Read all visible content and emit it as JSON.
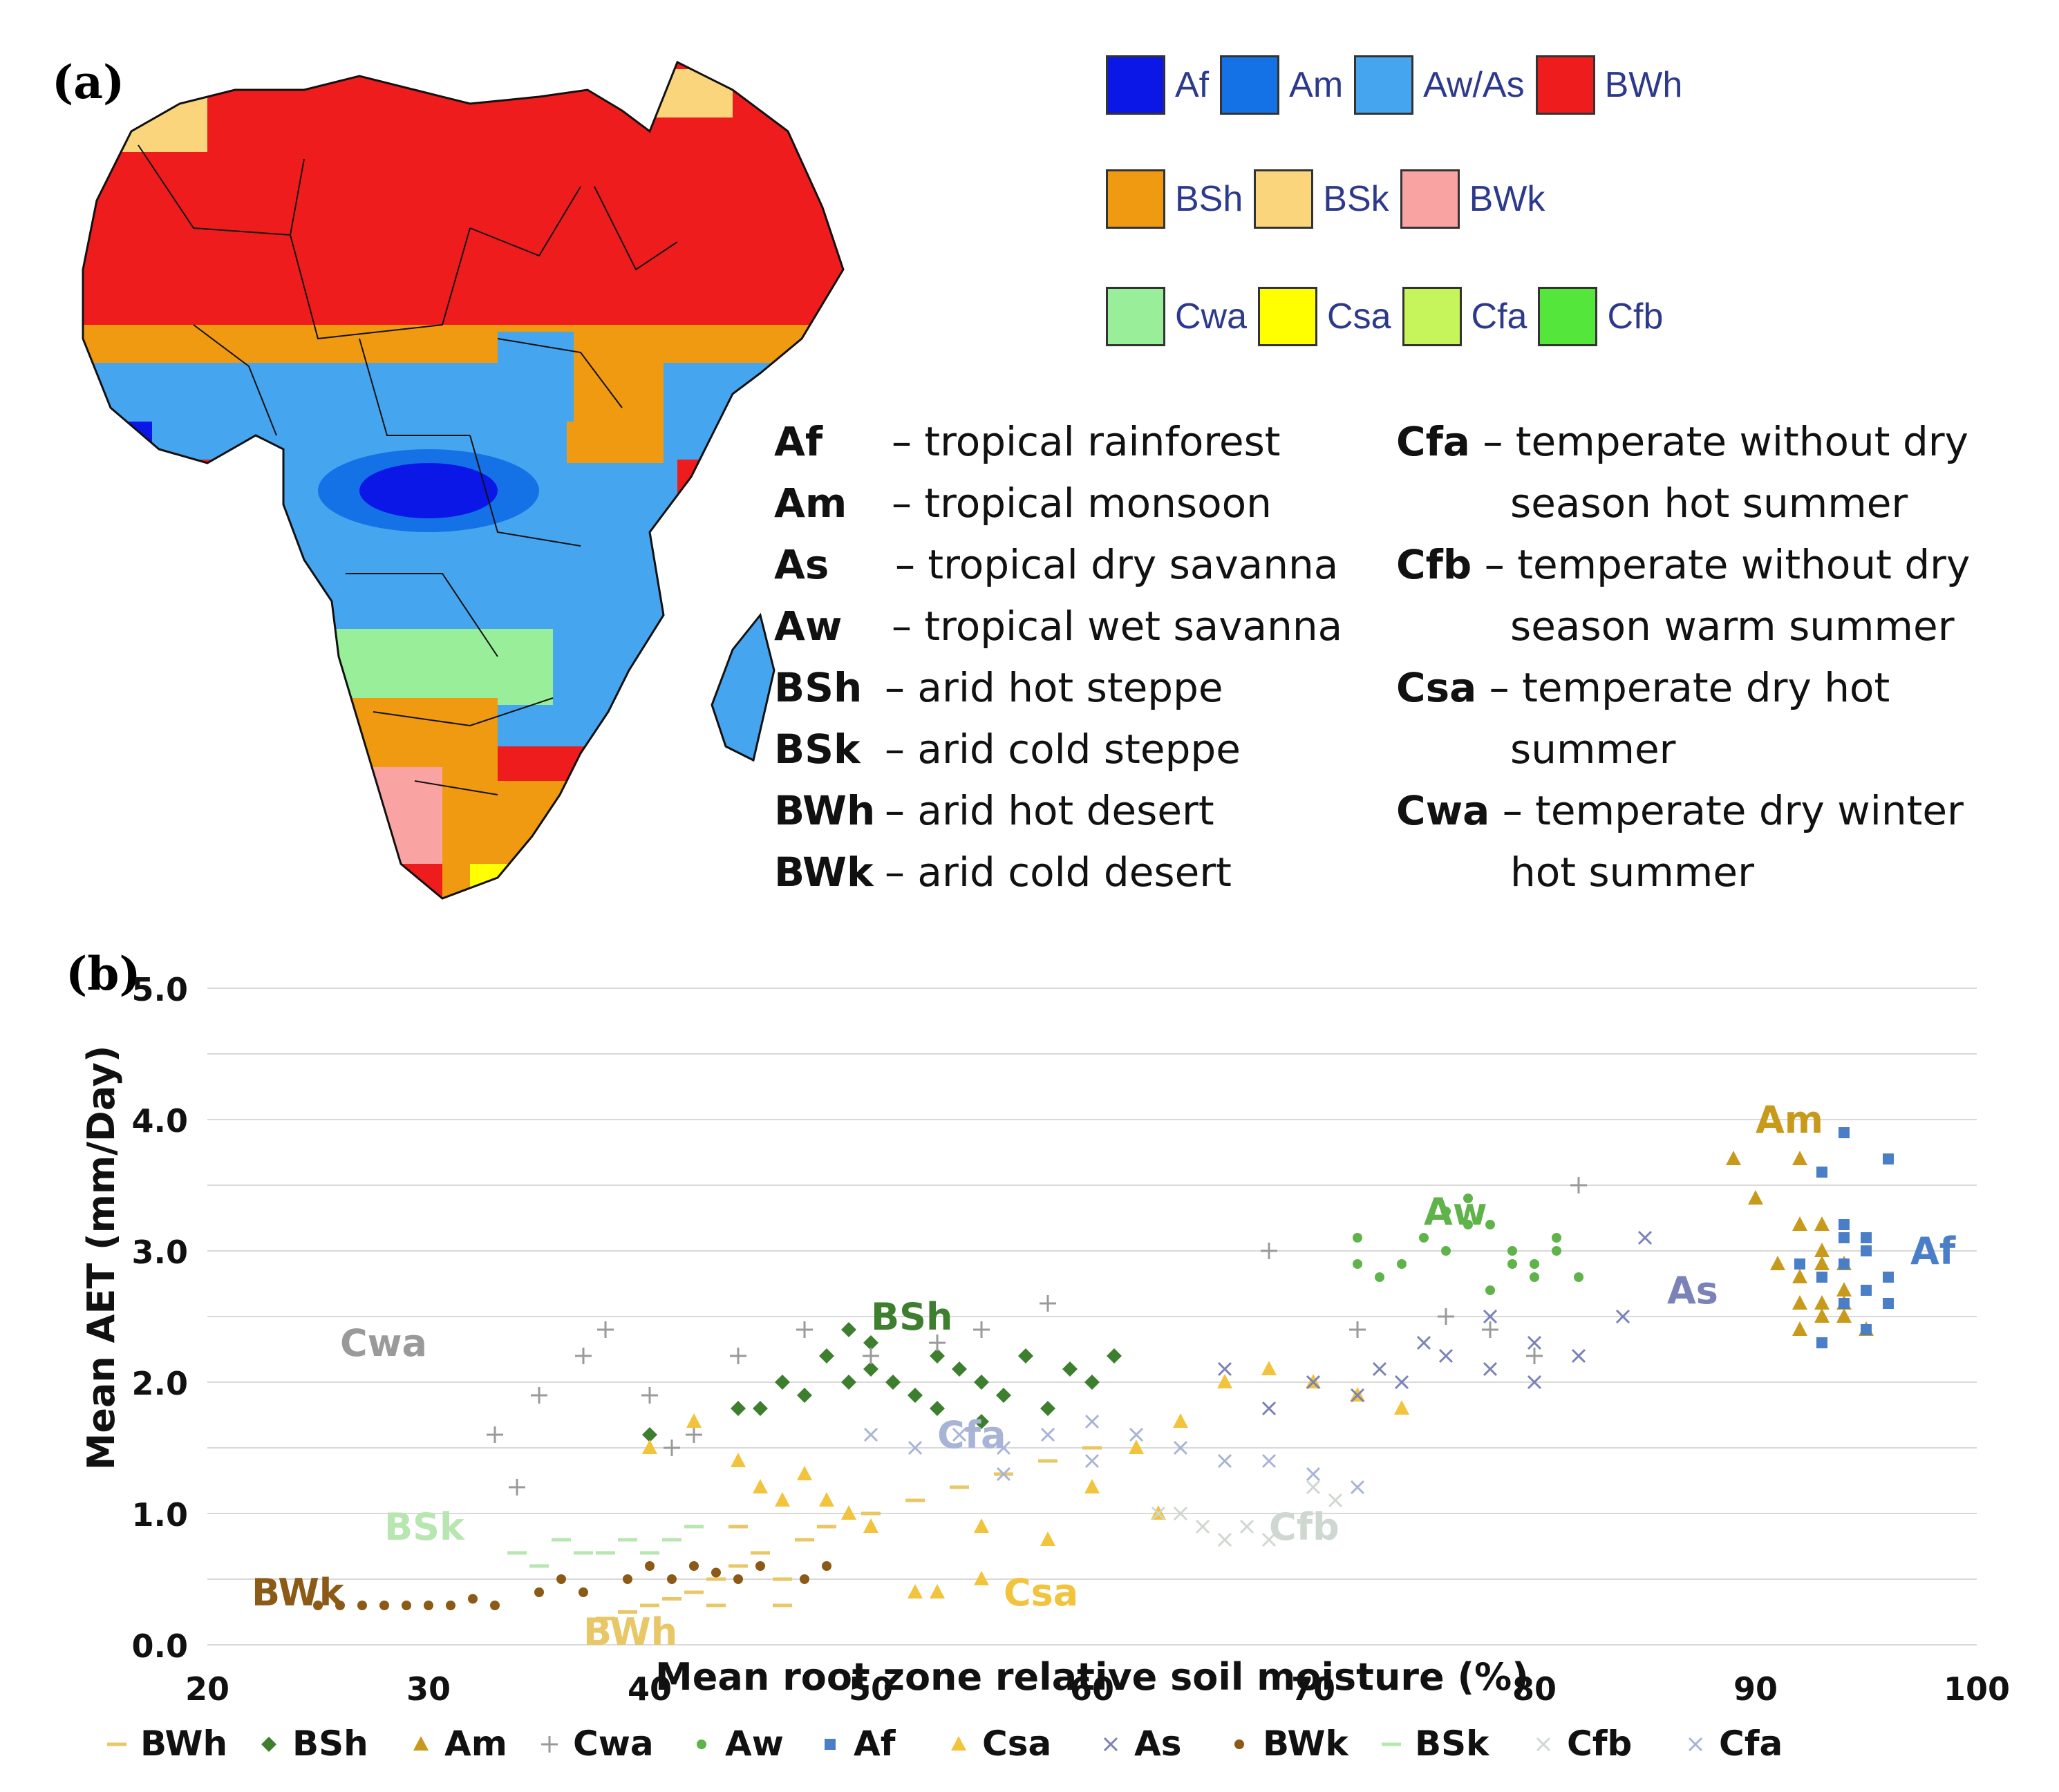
{
  "panel_a_label": "(a)",
  "panel_b_label": "(b)",
  "legend": {
    "rows": [
      [
        {
          "code": "Af",
          "color": "#0a17e6"
        },
        {
          "code": "Am",
          "color": "#1472e6"
        },
        {
          "code": "Aw/As",
          "color": "#46a5ef"
        },
        {
          "code": "BWh",
          "color": "#ee1c1c"
        }
      ],
      [
        {
          "code": "BSh",
          "color": "#ef9a10"
        },
        {
          "code": "BSk",
          "color": "#fad57c"
        },
        {
          "code": "BWk",
          "color": "#f9a3a3"
        }
      ],
      [
        {
          "code": "Cwa",
          "color": "#99ee99"
        },
        {
          "code": "Csa",
          "color": "#ffff00"
        },
        {
          "code": "Cfa",
          "color": "#c5f55a"
        },
        {
          "code": "Cfb",
          "color": "#55e63c"
        }
      ]
    ]
  },
  "definitions_left": [
    {
      "code": "Af",
      "text": "– tropical rainforest"
    },
    {
      "code": "Am",
      "text": "– tropical monsoon"
    },
    {
      "code": "As",
      "text": "– tropical dry savanna"
    },
    {
      "code": "Aw",
      "text": "– tropical wet savanna"
    },
    {
      "code": "BSh",
      "text": "– arid hot steppe"
    },
    {
      "code": "BSk",
      "text": "– arid cold steppe"
    },
    {
      "code": "BWh",
      "text": "– arid hot desert"
    },
    {
      "code": "BWk",
      "text": "– arid cold desert"
    }
  ],
  "definitions_right": [
    {
      "code": "Cfa",
      "text": "– temperate without dry",
      "cont": "season hot summer"
    },
    {
      "code": "Cfb",
      "text": "– temperate without dry",
      "cont": "season warm summer"
    },
    {
      "code": "Csa",
      "text": "– temperate dry hot",
      "cont": "summer"
    },
    {
      "code": "Cwa",
      "text": "– temperate dry winter",
      "cont": "hot summer"
    }
  ],
  "map_colors": {
    "BWh": "#ee1c1c",
    "BSh": "#ef9a10",
    "BSk": "#fad57c",
    "BWk": "#f9a3a3",
    "Af": "#0a17e6",
    "Am": "#1472e6",
    "Aw": "#46a5ef",
    "Cwa": "#99ee99",
    "Csa": "#ffff00",
    "Cfa": "#c5f55a",
    "Cfb": "#55e63c"
  },
  "chart_data": {
    "type": "scatter",
    "title": "",
    "xlabel": "Mean root zone relative soil moisture (%)",
    "ylabel": "Mean AET (mm/Day)",
    "xlim": [
      20,
      100
    ],
    "ylim": [
      0.0,
      5.0
    ],
    "xticks": [
      "20",
      "30",
      "40",
      "50",
      "60",
      "70",
      "80",
      "90",
      "100"
    ],
    "yticks": [
      "0.0",
      "1.0",
      "2.0",
      "3.0",
      "4.0",
      "5.0"
    ],
    "grid": true,
    "legend_position": "bottom",
    "series": [
      {
        "name": "BWh",
        "marker": "dash",
        "color": "#e8c766",
        "label_pos": [
          37,
          0.0
        ],
        "points": [
          [
            38,
            0.2
          ],
          [
            39,
            0.25
          ],
          [
            40,
            0.3
          ],
          [
            41,
            0.35
          ],
          [
            42,
            0.4
          ],
          [
            43,
            0.5
          ],
          [
            44,
            0.6
          ],
          [
            45,
            0.7
          ],
          [
            46,
            0.5
          ],
          [
            47,
            0.8
          ],
          [
            48,
            0.9
          ],
          [
            50,
            1.0
          ],
          [
            52,
            1.1
          ],
          [
            54,
            1.2
          ],
          [
            56,
            1.3
          ],
          [
            58,
            1.4
          ],
          [
            60,
            1.5
          ],
          [
            44,
            0.9
          ],
          [
            43,
            0.3
          ],
          [
            46,
            0.3
          ]
        ]
      },
      {
        "name": "BSh",
        "marker": "diamond",
        "color": "#3d7f2e",
        "label_pos": [
          50,
          2.4
        ],
        "points": [
          [
            40,
            1.6
          ],
          [
            44,
            1.8
          ],
          [
            45,
            1.8
          ],
          [
            46,
            2.0
          ],
          [
            47,
            1.9
          ],
          [
            48,
            2.2
          ],
          [
            49,
            2.0
          ],
          [
            50,
            2.1
          ],
          [
            51,
            2.0
          ],
          [
            52,
            1.9
          ],
          [
            53,
            2.2
          ],
          [
            54,
            2.1
          ],
          [
            55,
            2.0
          ],
          [
            56,
            1.9
          ],
          [
            57,
            2.2
          ],
          [
            58,
            1.8
          ],
          [
            59,
            2.1
          ],
          [
            60,
            2.0
          ],
          [
            61,
            2.2
          ],
          [
            55,
            1.7
          ],
          [
            53,
            1.8
          ],
          [
            50,
            2.3
          ],
          [
            49,
            2.4
          ]
        ]
      },
      {
        "name": "Am",
        "marker": "triangle",
        "color": "#c89a1c",
        "label_pos": [
          90,
          3.9
        ],
        "points": [
          [
            89,
            3.7
          ],
          [
            90,
            3.4
          ],
          [
            92,
            3.7
          ],
          [
            92,
            3.2
          ],
          [
            93,
            3.0
          ],
          [
            92,
            2.8
          ],
          [
            93,
            2.6
          ],
          [
            94,
            2.5
          ],
          [
            93,
            2.9
          ],
          [
            92,
            2.6
          ],
          [
            94,
            2.7
          ],
          [
            95,
            2.4
          ],
          [
            94,
            2.9
          ],
          [
            93,
            3.2
          ],
          [
            91,
            2.9
          ],
          [
            92,
            2.4
          ],
          [
            93,
            2.5
          ],
          [
            94,
            2.6
          ]
        ]
      },
      {
        "name": "Cwa",
        "marker": "plus",
        "color": "#9a9a9a",
        "label_pos": [
          26,
          2.2
        ],
        "points": [
          [
            33,
            1.6
          ],
          [
            34,
            1.2
          ],
          [
            35,
            1.9
          ],
          [
            37,
            2.2
          ],
          [
            38,
            2.4
          ],
          [
            40,
            1.9
          ],
          [
            41,
            1.5
          ],
          [
            42,
            1.6
          ],
          [
            44,
            2.2
          ],
          [
            47,
            2.4
          ],
          [
            50,
            2.2
          ],
          [
            53,
            2.3
          ],
          [
            55,
            2.4
          ],
          [
            58,
            2.6
          ],
          [
            68,
            3.0
          ],
          [
            72,
            2.4
          ],
          [
            76,
            2.5
          ],
          [
            78,
            2.4
          ],
          [
            80,
            2.2
          ],
          [
            82,
            3.5
          ]
        ]
      },
      {
        "name": "Aw",
        "marker": "dot",
        "color": "#5fb34a",
        "label_pos": [
          75,
          3.2
        ],
        "points": [
          [
            72,
            2.9
          ],
          [
            72,
            3.1
          ],
          [
            73,
            2.8
          ],
          [
            74,
            2.9
          ],
          [
            75,
            3.1
          ],
          [
            76,
            3.0
          ],
          [
            77,
            3.4
          ],
          [
            78,
            3.2
          ],
          [
            79,
            3.0
          ],
          [
            79,
            2.9
          ],
          [
            80,
            2.9
          ],
          [
            81,
            3.0
          ],
          [
            82,
            2.8
          ],
          [
            81,
            3.1
          ],
          [
            80,
            2.8
          ],
          [
            78,
            2.7
          ],
          [
            77,
            3.2
          ],
          [
            76,
            3.3
          ]
        ]
      },
      {
        "name": "Af",
        "marker": "square",
        "color": "#4a7fc8",
        "label_pos": [
          97,
          2.9
        ],
        "points": [
          [
            94,
            3.9
          ],
          [
            96,
            3.7
          ],
          [
            93,
            3.6
          ],
          [
            94,
            3.1
          ],
          [
            95,
            3.0
          ],
          [
            94,
            2.9
          ],
          [
            93,
            2.8
          ],
          [
            95,
            2.7
          ],
          [
            96,
            2.8
          ],
          [
            94,
            2.6
          ],
          [
            95,
            2.4
          ],
          [
            93,
            2.3
          ],
          [
            94,
            3.2
          ],
          [
            92,
            2.9
          ],
          [
            96,
            2.6
          ],
          [
            95,
            3.1
          ]
        ]
      },
      {
        "name": "Csa",
        "marker": "triangle",
        "color": "#f2c33c",
        "label_pos": [
          56,
          0.3
        ],
        "points": [
          [
            40,
            1.5
          ],
          [
            42,
            1.7
          ],
          [
            44,
            1.4
          ],
          [
            45,
            1.2
          ],
          [
            46,
            1.1
          ],
          [
            47,
            1.3
          ],
          [
            48,
            1.1
          ],
          [
            49,
            1.0
          ],
          [
            50,
            0.9
          ],
          [
            52,
            0.4
          ],
          [
            53,
            0.4
          ],
          [
            55,
            0.5
          ],
          [
            58,
            0.8
          ],
          [
            60,
            1.2
          ],
          [
            62,
            1.5
          ],
          [
            64,
            1.7
          ],
          [
            66,
            2.0
          ],
          [
            68,
            2.1
          ],
          [
            70,
            2.0
          ],
          [
            72,
            1.9
          ],
          [
            74,
            1.8
          ],
          [
            63,
            1.0
          ],
          [
            55,
            0.9
          ]
        ]
      },
      {
        "name": "As",
        "marker": "x",
        "color": "#7a82b8",
        "label_pos": [
          86,
          2.6
        ],
        "points": [
          [
            66,
            2.1
          ],
          [
            68,
            1.8
          ],
          [
            70,
            2.0
          ],
          [
            72,
            1.9
          ],
          [
            74,
            2.0
          ],
          [
            76,
            2.2
          ],
          [
            78,
            2.1
          ],
          [
            80,
            2.3
          ],
          [
            82,
            2.2
          ],
          [
            84,
            2.5
          ],
          [
            85,
            3.1
          ],
          [
            78,
            2.5
          ],
          [
            75,
            2.3
          ],
          [
            73,
            2.1
          ],
          [
            80,
            2.0
          ]
        ]
      },
      {
        "name": "BWk",
        "marker": "dot",
        "color": "#8a5a16",
        "label_pos": [
          22,
          0.3
        ],
        "points": [
          [
            25,
            0.3
          ],
          [
            26,
            0.3
          ],
          [
            27,
            0.3
          ],
          [
            28,
            0.3
          ],
          [
            29,
            0.3
          ],
          [
            30,
            0.3
          ],
          [
            31,
            0.3
          ],
          [
            32,
            0.35
          ],
          [
            33,
            0.3
          ],
          [
            35,
            0.4
          ],
          [
            36,
            0.5
          ],
          [
            37,
            0.4
          ],
          [
            39,
            0.5
          ],
          [
            40,
            0.6
          ],
          [
            41,
            0.5
          ],
          [
            42,
            0.6
          ],
          [
            43,
            0.55
          ],
          [
            44,
            0.5
          ],
          [
            45,
            0.6
          ],
          [
            47,
            0.5
          ],
          [
            48,
            0.6
          ]
        ]
      },
      {
        "name": "BSk",
        "marker": "dash",
        "color": "#b8e6b0",
        "label_pos": [
          28,
          0.8
        ],
        "points": [
          [
            34,
            0.7
          ],
          [
            35,
            0.6
          ],
          [
            36,
            0.8
          ],
          [
            37,
            0.7
          ],
          [
            38,
            0.7
          ],
          [
            39,
            0.8
          ],
          [
            40,
            0.7
          ],
          [
            41,
            0.8
          ],
          [
            42,
            0.9
          ]
        ]
      },
      {
        "name": "Cfb",
        "marker": "x",
        "color": "#cfd8d0",
        "label_pos": [
          68,
          0.8
        ],
        "points": [
          [
            64,
            1.0
          ],
          [
            65,
            0.9
          ],
          [
            66,
            0.8
          ],
          [
            67,
            0.9
          ],
          [
            68,
            0.8
          ],
          [
            70,
            1.2
          ],
          [
            71,
            1.1
          ],
          [
            63,
            1.0
          ]
        ]
      },
      {
        "name": "Cfa",
        "marker": "x",
        "color": "#a8b4d6",
        "label_pos": [
          53,
          1.5
        ],
        "points": [
          [
            50,
            1.6
          ],
          [
            52,
            1.5
          ],
          [
            54,
            1.6
          ],
          [
            56,
            1.5
          ],
          [
            58,
            1.6
          ],
          [
            60,
            1.7
          ],
          [
            62,
            1.6
          ],
          [
            64,
            1.5
          ],
          [
            66,
            1.4
          ],
          [
            68,
            1.4
          ],
          [
            70,
            1.3
          ],
          [
            72,
            1.2
          ],
          [
            56,
            1.3
          ],
          [
            60,
            1.4
          ]
        ]
      }
    ]
  }
}
